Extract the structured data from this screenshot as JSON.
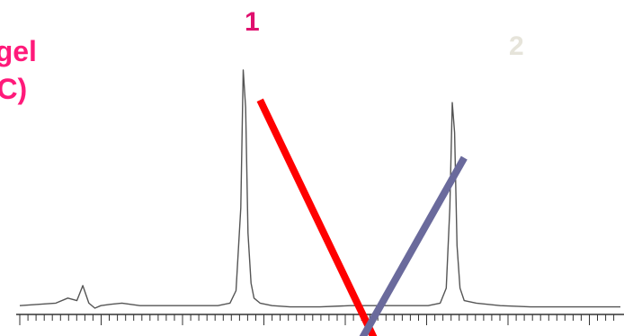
{
  "caption": {
    "line1": "a gel",
    "line2": "LIC)",
    "color": "#ff1a7a"
  },
  "peak_labels": [
    {
      "text": "1",
      "color": "#e0106e"
    },
    {
      "text": "2",
      "color": "#e6e4da"
    }
  ],
  "colors": {
    "trace": "#555555",
    "axis": "#333333",
    "red_line": "#ff0000",
    "blue_line": "#6a6a9c"
  },
  "chart_data": {
    "type": "line",
    "title": "",
    "xlabel": "",
    "ylabel": "",
    "grid": false,
    "xlim": [
      0,
      100
    ],
    "ylim": [
      0,
      100
    ],
    "series": [
      {
        "x": [
          0,
          3,
          6,
          8,
          9.5,
          10.5,
          11.5,
          12.5,
          13.5,
          15,
          17,
          20,
          25,
          30,
          33,
          35,
          36,
          36.8,
          37.2,
          37.6,
          38,
          38.5,
          39,
          40,
          42,
          45,
          50,
          55,
          60,
          65,
          68,
          70,
          71,
          71.6,
          72,
          72.4,
          72.8,
          73.3,
          74,
          76,
          80,
          85,
          90,
          95,
          100
        ],
        "y": [
          1,
          1.5,
          2,
          4,
          3,
          9,
          2,
          0,
          1,
          1.5,
          2,
          1,
          1,
          1,
          1,
          2,
          7,
          40,
          95,
          80,
          30,
          10,
          4,
          2,
          1,
          0.5,
          0.5,
          1,
          1,
          1,
          1,
          2,
          8,
          40,
          82,
          70,
          25,
          8,
          3,
          2,
          1,
          0.5,
          0.5,
          0.5,
          0.5
        ]
      }
    ],
    "annotations": [
      {
        "type": "line",
        "name": "red-line",
        "from": [
          40,
          83
        ],
        "to": [
          59,
          -12
        ]
      },
      {
        "type": "line",
        "name": "blue-line",
        "from": [
          74,
          60
        ],
        "to": [
          57,
          -12
        ]
      }
    ]
  }
}
